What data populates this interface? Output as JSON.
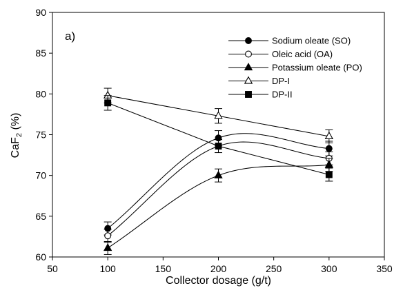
{
  "chart_data": {
    "type": "scatter",
    "title": "",
    "xlabel": "Collector dosage (g/t)",
    "ylabel_main": "CaF",
    "ylabel_subscript": "2",
    "ylabel_suffix": " (%)",
    "annotation": "a)",
    "xlim": [
      50,
      350
    ],
    "ylim": [
      60,
      90
    ],
    "xticks": [
      50,
      100,
      150,
      200,
      250,
      300,
      350
    ],
    "yticks": [
      60,
      65,
      70,
      75,
      80,
      85,
      90
    ],
    "grid": false,
    "legend_placement": "top-right",
    "series": [
      {
        "name": "Sodium oleate (SO)",
        "marker": "circle-filled",
        "line": "smooth",
        "x": [
          100,
          200,
          300
        ],
        "y": [
          63.5,
          74.6,
          73.3
        ],
        "err": [
          0.8,
          0.9,
          0.9
        ]
      },
      {
        "name": "Oleic acid (OA)",
        "marker": "circle-open",
        "line": "smooth",
        "x": [
          100,
          200,
          300
        ],
        "y": [
          62.6,
          73.6,
          72.1
        ],
        "err": [
          0.8,
          0.8,
          0.8
        ]
      },
      {
        "name": "Potassium oleate (PO)",
        "marker": "triangle-filled",
        "line": "smooth",
        "x": [
          100,
          200,
          300
        ],
        "y": [
          61.1,
          70.0,
          71.3
        ],
        "err": [
          0.8,
          0.8,
          0.8
        ]
      },
      {
        "name": "DP-I",
        "marker": "triangle-open",
        "line": "straight",
        "x": [
          100,
          200,
          300
        ],
        "y": [
          79.8,
          77.3,
          74.8
        ],
        "err": [
          0.9,
          0.9,
          0.8
        ]
      },
      {
        "name": "DP-II",
        "marker": "square-filled",
        "line": "straight",
        "x": [
          100,
          200,
          300
        ],
        "y": [
          78.9,
          73.6,
          70.1
        ],
        "err": [
          0.9,
          0.8,
          0.8
        ]
      }
    ]
  },
  "colors": {
    "background": "#ffffff",
    "ink": "#000000"
  }
}
